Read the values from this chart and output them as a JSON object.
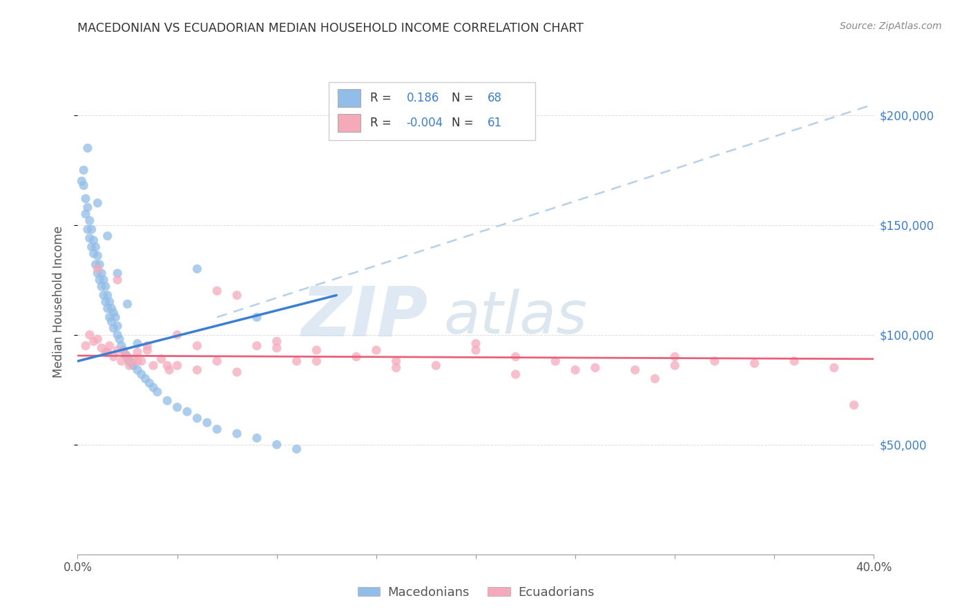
{
  "title": "MACEDONIAN VS ECUADORIAN MEDIAN HOUSEHOLD INCOME CORRELATION CHART",
  "source": "Source: ZipAtlas.com",
  "ylabel": "Median Household Income",
  "xlim": [
    0.0,
    0.4
  ],
  "ylim": [
    0,
    230000
  ],
  "yticks": [
    50000,
    100000,
    150000,
    200000
  ],
  "ytick_labels": [
    "$50,000",
    "$100,000",
    "$150,000",
    "$200,000"
  ],
  "xticks": [
    0.0,
    0.05,
    0.1,
    0.15,
    0.2,
    0.25,
    0.3,
    0.35,
    0.4
  ],
  "xtick_labels": [
    "0.0%",
    "",
    "",
    "",
    "",
    "",
    "",
    "",
    "40.0%"
  ],
  "blue_scatter_color": "#92bde8",
  "pink_scatter_color": "#f5aaba",
  "trendline_blue_solid": "#3a7fd5",
  "trendline_pink_solid": "#e8607a",
  "trendline_dashed_color": "#a8c8e8",
  "grid_color": "#dddddd",
  "R_mac": 0.186,
  "N_mac": 68,
  "R_ecu": -0.004,
  "N_ecu": 61,
  "blue_trendline_x": [
    0.0,
    0.13
  ],
  "blue_trendline_y": [
    88000,
    118000
  ],
  "dashed_trendline_x": [
    0.07,
    0.4
  ],
  "dashed_trendline_y": [
    108000,
    205000
  ],
  "pink_trendline_x": [
    0.0,
    0.4
  ],
  "pink_trendline_y": [
    90500,
    89000
  ],
  "watermark_zip": "ZIP",
  "watermark_atlas": "atlas",
  "legend_label1": "R =   0.186   N = 68",
  "legend_label2": "R = -0.004   N = 61",
  "mac_x": [
    0.002,
    0.003,
    0.003,
    0.004,
    0.004,
    0.005,
    0.005,
    0.006,
    0.006,
    0.007,
    0.007,
    0.008,
    0.008,
    0.009,
    0.009,
    0.01,
    0.01,
    0.011,
    0.011,
    0.012,
    0.012,
    0.013,
    0.013,
    0.014,
    0.014,
    0.015,
    0.015,
    0.016,
    0.016,
    0.017,
    0.017,
    0.018,
    0.018,
    0.019,
    0.02,
    0.02,
    0.021,
    0.022,
    0.023,
    0.024,
    0.025,
    0.026,
    0.027,
    0.028,
    0.03,
    0.032,
    0.034,
    0.036,
    0.038,
    0.04,
    0.045,
    0.05,
    0.055,
    0.06,
    0.065,
    0.07,
    0.08,
    0.09,
    0.1,
    0.11,
    0.005,
    0.01,
    0.015,
    0.02,
    0.025,
    0.03,
    0.06,
    0.09
  ],
  "mac_y": [
    170000,
    175000,
    168000,
    162000,
    155000,
    158000,
    148000,
    152000,
    144000,
    148000,
    140000,
    143000,
    137000,
    140000,
    132000,
    136000,
    128000,
    132000,
    125000,
    128000,
    122000,
    125000,
    118000,
    122000,
    115000,
    118000,
    112000,
    115000,
    108000,
    112000,
    106000,
    110000,
    103000,
    108000,
    104000,
    100000,
    98000,
    95000,
    93000,
    91000,
    90000,
    88000,
    87000,
    86000,
    84000,
    82000,
    80000,
    78000,
    76000,
    74000,
    70000,
    67000,
    65000,
    62000,
    60000,
    57000,
    55000,
    53000,
    50000,
    48000,
    185000,
    160000,
    145000,
    128000,
    114000,
    96000,
    130000,
    108000
  ],
  "ecu_x": [
    0.004,
    0.006,
    0.008,
    0.01,
    0.012,
    0.014,
    0.016,
    0.018,
    0.02,
    0.022,
    0.024,
    0.026,
    0.028,
    0.03,
    0.032,
    0.035,
    0.038,
    0.042,
    0.046,
    0.05,
    0.06,
    0.07,
    0.08,
    0.09,
    0.1,
    0.11,
    0.12,
    0.14,
    0.16,
    0.18,
    0.2,
    0.22,
    0.24,
    0.26,
    0.28,
    0.3,
    0.32,
    0.34,
    0.36,
    0.38,
    0.01,
    0.02,
    0.03,
    0.05,
    0.07,
    0.1,
    0.15,
    0.2,
    0.25,
    0.3,
    0.015,
    0.025,
    0.035,
    0.045,
    0.06,
    0.08,
    0.12,
    0.16,
    0.22,
    0.29,
    0.39
  ],
  "ecu_y": [
    95000,
    100000,
    97000,
    98000,
    94000,
    92000,
    95000,
    90000,
    93000,
    88000,
    91000,
    86000,
    89000,
    92000,
    88000,
    93000,
    86000,
    89000,
    84000,
    100000,
    95000,
    88000,
    118000,
    95000,
    97000,
    88000,
    93000,
    90000,
    88000,
    86000,
    93000,
    90000,
    88000,
    85000,
    84000,
    90000,
    88000,
    87000,
    88000,
    85000,
    130000,
    125000,
    88000,
    86000,
    120000,
    94000,
    93000,
    96000,
    84000,
    86000,
    92000,
    89000,
    95000,
    86000,
    84000,
    83000,
    88000,
    85000,
    82000,
    80000,
    68000
  ]
}
